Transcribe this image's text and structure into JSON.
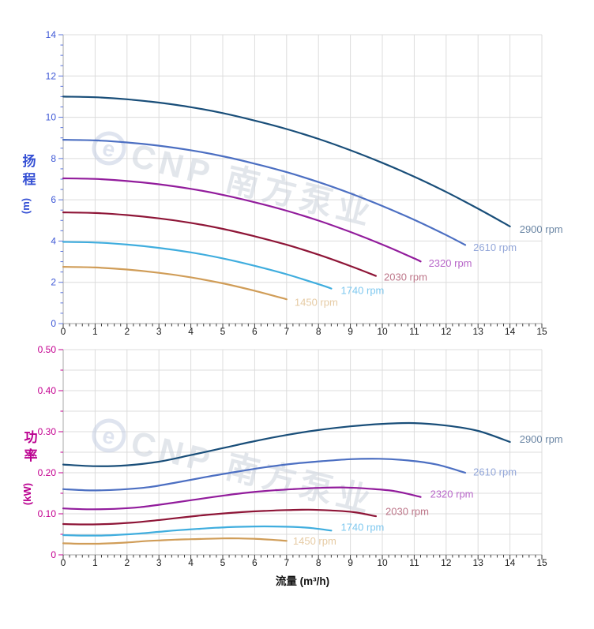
{
  "page": {
    "background": "#ffffff"
  },
  "watermark": {
    "logo_glyph": "e",
    "brand_text": "CNP 南方泵业",
    "color": "#ccd2dc",
    "logo_color": "#c5cfe2",
    "opacity": 0.55
  },
  "style": {
    "grid_color": "#dcdcdc",
    "spine_color": "#b6b6b6",
    "x_tick_color": "#3c3c3c",
    "x_label_color": "#1f1f1f",
    "xlabel_title_color": "#111111"
  },
  "chart_data": [
    {
      "id": "head-chart",
      "type": "line",
      "title": "",
      "xlabel": "",
      "ylabel": "扬程",
      "ylabel_unit": "(m)",
      "xlim": [
        0,
        15
      ],
      "ylim": [
        0,
        14
      ],
      "axis_title_color": "#3550d4",
      "y_tick_color": "#5b74dd",
      "y_label_color": "#3e58d6",
      "grid": {
        "x_step": 1,
        "y_step": 2
      },
      "ticks": {
        "x_major": 1,
        "x_minor": 0.2,
        "y_major": 2,
        "y_minor": 0.5
      },
      "x_tick_labels": [
        "0",
        "1",
        "2",
        "3",
        "4",
        "5",
        "6",
        "7",
        "8",
        "9",
        "10",
        "11",
        "12",
        "13",
        "14",
        "15"
      ],
      "x_label_step": 1,
      "y_tick_labels": [
        "0",
        "2",
        "4",
        "6",
        "8",
        "10",
        "12",
        "14"
      ],
      "y_label_step": 2,
      "legend_position": "right-of-curve-end",
      "series": [
        {
          "name": "2900 rpm",
          "color": "#194e79",
          "label_color": "#6c87a5",
          "label_at": [
            14.3,
            4.55
          ],
          "points": [
            [
              0,
              11.0
            ],
            [
              1,
              10.97
            ],
            [
              2,
              10.87
            ],
            [
              3,
              10.71
            ],
            [
              4,
              10.49
            ],
            [
              5,
              10.2
            ],
            [
              6,
              9.84
            ],
            [
              7,
              9.43
            ],
            [
              8,
              8.95
            ],
            [
              9,
              8.4
            ],
            [
              10,
              7.79
            ],
            [
              11,
              7.12
            ],
            [
              12,
              6.38
            ],
            [
              13,
              5.57
            ],
            [
              14,
              4.71
            ]
          ]
        },
        {
          "name": "2610 rpm",
          "color": "#4c6fc2",
          "label_color": "#93a7d9",
          "label_at": [
            12.85,
            3.67
          ],
          "points": [
            [
              0,
              8.91
            ],
            [
              1,
              8.88
            ],
            [
              2,
              8.78
            ],
            [
              3,
              8.62
            ],
            [
              4,
              8.4
            ],
            [
              5,
              8.11
            ],
            [
              6,
              7.75
            ],
            [
              7,
              7.34
            ],
            [
              8,
              6.86
            ],
            [
              9,
              6.31
            ],
            [
              10,
              5.7
            ],
            [
              11,
              5.03
            ],
            [
              12,
              4.29
            ],
            [
              12.6,
              3.81
            ]
          ]
        },
        {
          "name": "2320 rpm",
          "color": "#921c9c",
          "label_color": "#b867c9",
          "label_at": [
            11.45,
            2.9
          ],
          "points": [
            [
              0,
              7.04
            ],
            [
              1,
              7.01
            ],
            [
              2,
              6.91
            ],
            [
              3,
              6.75
            ],
            [
              4,
              6.53
            ],
            [
              5,
              6.24
            ],
            [
              6,
              5.88
            ],
            [
              7,
              5.47
            ],
            [
              8,
              4.99
            ],
            [
              9,
              4.44
            ],
            [
              10,
              3.83
            ],
            [
              11,
              3.16
            ],
            [
              11.2,
              3.01
            ]
          ]
        },
        {
          "name": "2030 rpm",
          "color": "#8e1537",
          "label_color": "#bd7689",
          "label_at": [
            10.05,
            2.23
          ],
          "points": [
            [
              0,
              5.39
            ],
            [
              1,
              5.36
            ],
            [
              2,
              5.26
            ],
            [
              3,
              5.1
            ],
            [
              4,
              4.88
            ],
            [
              5,
              4.59
            ],
            [
              6,
              4.23
            ],
            [
              7,
              3.82
            ],
            [
              8,
              3.34
            ],
            [
              9,
              2.79
            ],
            [
              9.8,
              2.31
            ]
          ]
        },
        {
          "name": "1740 rpm",
          "color": "#3fadde",
          "label_color": "#7ec8ef",
          "label_at": [
            8.7,
            1.58
          ],
          "points": [
            [
              0,
              3.96
            ],
            [
              1,
              3.93
            ],
            [
              2,
              3.83
            ],
            [
              3,
              3.67
            ],
            [
              4,
              3.45
            ],
            [
              5,
              3.16
            ],
            [
              6,
              2.8
            ],
            [
              7,
              2.39
            ],
            [
              8,
              1.91
            ],
            [
              8.4,
              1.7
            ]
          ]
        },
        {
          "name": "1450 rpm",
          "color": "#d09d58",
          "label_color": "#e6cba4",
          "label_at": [
            7.25,
            1.02
          ],
          "points": [
            [
              0,
              2.75
            ],
            [
              1,
              2.72
            ],
            [
              2,
              2.62
            ],
            [
              3,
              2.46
            ],
            [
              4,
              2.24
            ],
            [
              5,
              1.95
            ],
            [
              6,
              1.59
            ],
            [
              7,
              1.18
            ]
          ]
        }
      ]
    },
    {
      "id": "power-chart",
      "type": "line",
      "title": "",
      "xlabel": "流量 (m³/h)",
      "ylabel": "功率",
      "ylabel_unit": "(kW)",
      "xlim": [
        0,
        15
      ],
      "ylim": [
        0,
        0.5
      ],
      "axis_title_color": "#bb0090",
      "y_tick_color": "#c40090",
      "y_label_color": "#c40090",
      "grid": {
        "x_step": 1,
        "y_step": 0.05
      },
      "ticks": {
        "x_major": 1,
        "x_minor": 0.2,
        "y_major": 0.1,
        "y_minor": 0.05
      },
      "x_tick_labels": [
        "0",
        "1",
        "2",
        "3",
        "4",
        "5",
        "6",
        "7",
        "8",
        "9",
        "10",
        "11",
        "12",
        "13",
        "14",
        "15"
      ],
      "x_label_step": 1,
      "y_tick_labels": [
        "0",
        "0.10",
        "0.20",
        "0.30",
        "0.40",
        "0.50"
      ],
      "y_label_step": 0.1,
      "legend_position": "right-of-curve-end",
      "series": [
        {
          "name": "2900 rpm",
          "color": "#194e79",
          "label_color": "#6c87a5",
          "label_at": [
            14.3,
            0.281
          ],
          "points": [
            [
              0,
              0.22
            ],
            [
              1,
              0.216
            ],
            [
              2,
              0.218
            ],
            [
              3,
              0.227
            ],
            [
              4,
              0.243
            ],
            [
              5,
              0.26
            ],
            [
              6,
              0.277
            ],
            [
              7,
              0.292
            ],
            [
              8,
              0.304
            ],
            [
              9,
              0.313
            ],
            [
              10,
              0.319
            ],
            [
              11,
              0.321
            ],
            [
              12,
              0.315
            ],
            [
              13,
              0.302
            ],
            [
              14,
              0.275
            ]
          ]
        },
        {
          "name": "2610 rpm",
          "color": "#4c6fc2",
          "label_color": "#93a7d9",
          "label_at": [
            12.85,
            0.201
          ],
          "points": [
            [
              0,
              0.16
            ],
            [
              0.9,
              0.157
            ],
            [
              1.8,
              0.159
            ],
            [
              2.7,
              0.165
            ],
            [
              3.6,
              0.177
            ],
            [
              4.5,
              0.19
            ],
            [
              5.4,
              0.202
            ],
            [
              6.3,
              0.213
            ],
            [
              7.2,
              0.222
            ],
            [
              8.1,
              0.228
            ],
            [
              9,
              0.233
            ],
            [
              9.9,
              0.234
            ],
            [
              10.8,
              0.23
            ],
            [
              11.7,
              0.22
            ],
            [
              12.6,
              0.2
            ]
          ]
        },
        {
          "name": "2320 rpm",
          "color": "#921c9c",
          "label_color": "#b867c9",
          "label_at": [
            11.5,
            0.147
          ],
          "points": [
            [
              0,
              0.113
            ],
            [
              0.8,
              0.111
            ],
            [
              1.6,
              0.112
            ],
            [
              2.4,
              0.116
            ],
            [
              3.2,
              0.124
            ],
            [
              4,
              0.133
            ],
            [
              4.8,
              0.142
            ],
            [
              5.6,
              0.15
            ],
            [
              6.4,
              0.156
            ],
            [
              7.2,
              0.16
            ],
            [
              8,
              0.163
            ],
            [
              8.8,
              0.164
            ],
            [
              9.6,
              0.161
            ],
            [
              10.4,
              0.155
            ],
            [
              11.2,
              0.141
            ]
          ]
        },
        {
          "name": "2030 rpm",
          "color": "#8e1537",
          "label_color": "#bd7689",
          "label_at": [
            10.1,
            0.105
          ],
          "points": [
            [
              0,
              0.075
            ],
            [
              0.7,
              0.074
            ],
            [
              1.4,
              0.075
            ],
            [
              2.1,
              0.078
            ],
            [
              2.8,
              0.083
            ],
            [
              3.5,
              0.089
            ],
            [
              4.2,
              0.095
            ],
            [
              4.9,
              0.1
            ],
            [
              5.6,
              0.104
            ],
            [
              6.3,
              0.107
            ],
            [
              7,
              0.109
            ],
            [
              7.7,
              0.11
            ],
            [
              8.4,
              0.108
            ],
            [
              9.1,
              0.104
            ],
            [
              9.8,
              0.094
            ]
          ]
        },
        {
          "name": "1740 rpm",
          "color": "#3fadde",
          "label_color": "#7ec8ef",
          "label_at": [
            8.7,
            0.066
          ],
          "points": [
            [
              0,
              0.048
            ],
            [
              0.6,
              0.047
            ],
            [
              1.2,
              0.047
            ],
            [
              1.8,
              0.049
            ],
            [
              2.4,
              0.052
            ],
            [
              3,
              0.056
            ],
            [
              3.6,
              0.06
            ],
            [
              4.2,
              0.063
            ],
            [
              4.8,
              0.066
            ],
            [
              5.4,
              0.068
            ],
            [
              6,
              0.069
            ],
            [
              6.6,
              0.069
            ],
            [
              7.2,
              0.068
            ],
            [
              7.8,
              0.065
            ],
            [
              8.4,
              0.059
            ]
          ]
        },
        {
          "name": "1450 rpm",
          "color": "#d09d58",
          "label_color": "#e6cba4",
          "label_at": [
            7.2,
            0.033
          ],
          "points": [
            [
              0,
              0.028
            ],
            [
              0.5,
              0.027
            ],
            [
              1,
              0.027
            ],
            [
              1.5,
              0.028
            ],
            [
              2,
              0.03
            ],
            [
              2.5,
              0.033
            ],
            [
              3,
              0.035
            ],
            [
              3.5,
              0.037
            ],
            [
              4,
              0.038
            ],
            [
              4.5,
              0.039
            ],
            [
              5,
              0.04
            ],
            [
              5.5,
              0.04
            ],
            [
              6,
              0.039
            ],
            [
              6.5,
              0.037
            ],
            [
              7,
              0.034
            ]
          ]
        }
      ]
    }
  ]
}
